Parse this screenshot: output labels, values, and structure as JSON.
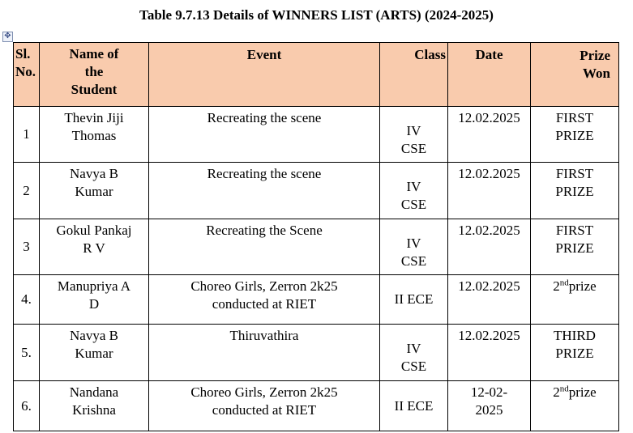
{
  "title": "Table 9.7.13 Details of WINNERS LIST (ARTS) (2024-2025)",
  "anchor_icon": "move-handle-icon",
  "headers": {
    "sl": [
      "Sl.",
      "No."
    ],
    "name": [
      "Name of",
      "the",
      "Student"
    ],
    "event": "Event",
    "class": "Class",
    "date": "Date",
    "prize": [
      "Prize",
      "Won"
    ]
  },
  "rows": [
    {
      "sl": "1",
      "name": [
        "Thevin Jiji",
        "Thomas"
      ],
      "event": [
        "Recreating the scene"
      ],
      "class": [
        "IV",
        "CSE"
      ],
      "date": [
        "12.02.2025"
      ],
      "prize": [
        "FIRST",
        "PRIZE"
      ],
      "prize_sup": null
    },
    {
      "sl": "2",
      "name": [
        "Navya B",
        "Kumar"
      ],
      "event": [
        "Recreating the scene"
      ],
      "class": [
        "IV",
        "CSE"
      ],
      "date": [
        "12.02.2025"
      ],
      "prize": [
        "FIRST",
        "PRIZE"
      ],
      "prize_sup": null
    },
    {
      "sl": "3",
      "name": [
        "Gokul Pankaj",
        "R V"
      ],
      "event": [
        "Recreating the Scene"
      ],
      "class": [
        "IV",
        "CSE"
      ],
      "date": [
        "12.02.2025"
      ],
      "prize": [
        "FIRST",
        "PRIZE"
      ],
      "prize_sup": null
    },
    {
      "sl": "4.",
      "name": [
        "Manupriya A",
        "D"
      ],
      "event": [
        "Choreo Girls, Zerron 2k25",
        "conducted at RIET"
      ],
      "class": [
        "II ECE"
      ],
      "date": [
        "12.02.2025"
      ],
      "prize": [
        "2",
        "prize"
      ],
      "prize_sup": "nd"
    },
    {
      "sl": "5.",
      "name": [
        "Navya B",
        "Kumar"
      ],
      "event": [
        "Thiruvathira"
      ],
      "class": [
        "IV",
        "CSE"
      ],
      "date": [
        "12.02.2025"
      ],
      "prize": [
        "THIRD",
        "PRIZE"
      ],
      "prize_sup": null
    },
    {
      "sl": "6.",
      "name": [
        "Nandana",
        "Krishna"
      ],
      "event": [
        "Choreo Girls, Zerron 2k25",
        "conducted at RIET"
      ],
      "class": [
        "II ECE"
      ],
      "date": [
        "12-02-",
        "2025"
      ],
      "prize": [
        "2",
        "prize"
      ],
      "prize_sup": "nd"
    }
  ]
}
